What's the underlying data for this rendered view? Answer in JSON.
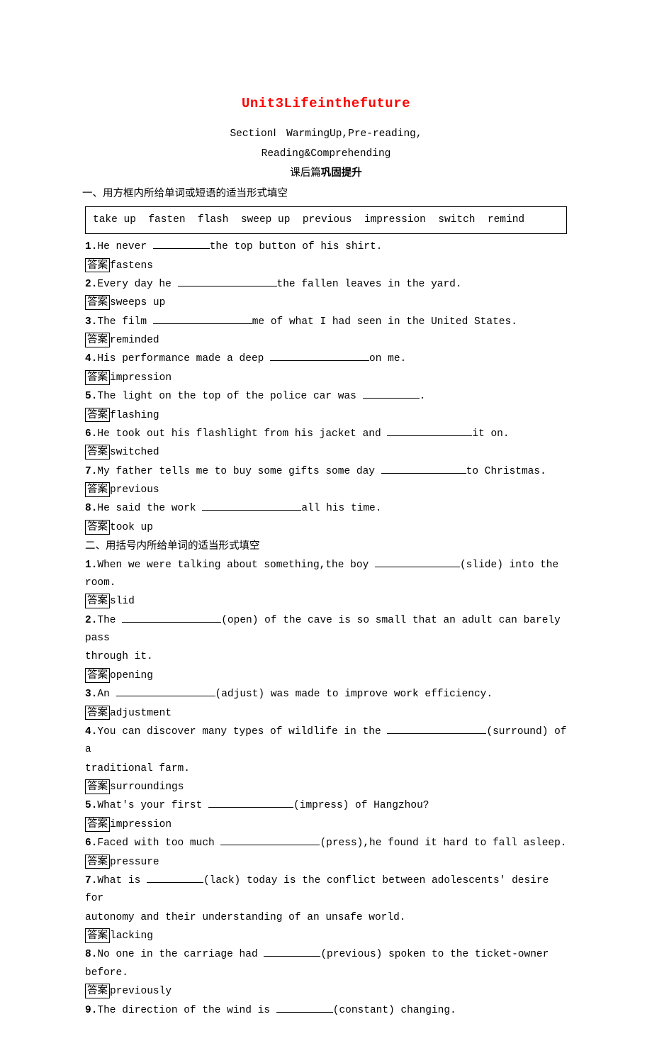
{
  "title": "Unit3Lifeinthefuture",
  "subtitle_line1": "SectionⅠ　WarmingUp,Pre-reading,",
  "subtitle_line2": "Reading&Comprehending",
  "subtitle_line3_a": "课后篇",
  "subtitle_line3_b": "巩固提升",
  "section1_header": "一、用方框内所给单词或短语的适当形式填空",
  "word_box": "take up  fasten  flash  sweep up  previous  impression  switch  remind",
  "answer_label": "答案",
  "s1": {
    "q1_a": "He never ",
    "q1_b": "the top button of his shirt.",
    "a1": "fastens",
    "q2_a": "Every day he ",
    "q2_b": "the fallen leaves in the yard.",
    "a2": "sweeps up",
    "q3_a": "The film ",
    "q3_b": "me of what I had seen in the United States.",
    "a3": "reminded",
    "q4_a": "His performance made a deep ",
    "q4_b": "on me.",
    "a4": "impression",
    "q5_a": "The light on the top of the police car was ",
    "q5_b": ".",
    "a5": "flashing",
    "q6_a": "He took out his flashlight from his jacket and ",
    "q6_b": "it on.",
    "a6": "switched",
    "q7_a": "My father tells me to buy some gifts some day ",
    "q7_b": "to Christmas.",
    "a7": "previous",
    "q8_a": "He said the work ",
    "q8_b": "all his time.",
    "a8": "took up"
  },
  "section2_header": "二、用括号内所给单词的适当形式填空",
  "s2": {
    "q1_a": "When we were talking about something,the boy ",
    "q1_b": "(slide) into the room.",
    "a1": "slid",
    "q2_a": "The ",
    "q2_b": "(open) of the cave is so small that an adult can barely pass",
    "q2_c": "through it.",
    "a2": "opening",
    "q3_a": "An ",
    "q3_b": "(adjust) was made to improve work efficiency.",
    "a3": "adjustment",
    "q4_a": "You can discover many types of wildlife in the ",
    "q4_b": "(surround) of a",
    "q4_c": "traditional farm.",
    "a4": "surroundings",
    "q5_a": "What's your first ",
    "q5_b": "(impress) of Hangzhou?",
    "a5": "impression",
    "q6_a": "Faced with too much ",
    "q6_b": "(press),he found it hard to fall asleep.",
    "a6": "pressure",
    "q7_a": "What is ",
    "q7_b": "(lack) today is the conflict between adolescents' desire for",
    "q7_c": "autonomy and their understanding of an unsafe world.",
    "a7": "lacking",
    "q8_a": "No one in the carriage had ",
    "q8_b": "(previous) spoken to the ticket-owner before.",
    "a8": "previously",
    "q9_a": "The direction of the wind is ",
    "q9_b": "(constant) changing."
  }
}
